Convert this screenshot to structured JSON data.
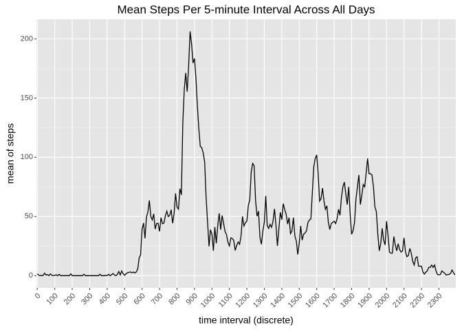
{
  "chart_data": {
    "type": "line",
    "title": "Mean Steps Per 5-minute Interval Across All Days",
    "x_label": "time interval (discrete)",
    "y_label": "mean of steps",
    "color": "#000000",
    "grid": true,
    "ylim": [
      -10.3,
      216.5
    ],
    "yticks": [
      0,
      50,
      100,
      150,
      200
    ],
    "categories": [
      "0",
      null,
      null,
      null,
      null,
      null,
      null,
      null,
      null,
      null,
      null,
      null,
      "100",
      null,
      null,
      null,
      null,
      null,
      null,
      null,
      null,
      null,
      null,
      null,
      "200",
      null,
      null,
      null,
      null,
      null,
      null,
      null,
      null,
      null,
      null,
      null,
      "300",
      null,
      null,
      null,
      null,
      null,
      null,
      null,
      null,
      null,
      null,
      null,
      "400",
      null,
      null,
      null,
      null,
      null,
      null,
      null,
      null,
      null,
      null,
      null,
      "500",
      null,
      null,
      null,
      null,
      null,
      null,
      null,
      null,
      null,
      null,
      null,
      "600",
      null,
      null,
      null,
      null,
      null,
      null,
      null,
      null,
      null,
      null,
      null,
      "700",
      null,
      null,
      null,
      null,
      null,
      null,
      null,
      null,
      null,
      null,
      null,
      "800",
      null,
      null,
      null,
      null,
      null,
      null,
      null,
      null,
      null,
      null,
      null,
      "900",
      null,
      null,
      null,
      null,
      null,
      null,
      null,
      null,
      null,
      null,
      null,
      "1000",
      null,
      null,
      null,
      null,
      null,
      null,
      null,
      null,
      null,
      null,
      null,
      "1100",
      null,
      null,
      null,
      null,
      null,
      null,
      null,
      null,
      null,
      null,
      null,
      "1200",
      null,
      null,
      null,
      null,
      null,
      null,
      null,
      null,
      null,
      null,
      null,
      "1300",
      null,
      null,
      null,
      null,
      null,
      null,
      null,
      null,
      null,
      null,
      null,
      "1400",
      null,
      null,
      null,
      null,
      null,
      null,
      null,
      null,
      null,
      null,
      null,
      "1500",
      null,
      null,
      null,
      null,
      null,
      null,
      null,
      null,
      null,
      null,
      null,
      "1600",
      null,
      null,
      null,
      null,
      null,
      null,
      null,
      null,
      null,
      null,
      null,
      "1700",
      null,
      null,
      null,
      null,
      null,
      null,
      null,
      null,
      null,
      null,
      null,
      "1800",
      null,
      null,
      null,
      null,
      null,
      null,
      null,
      null,
      null,
      null,
      null,
      "1900",
      null,
      null,
      null,
      null,
      null,
      null,
      null,
      null,
      null,
      null,
      null,
      "2000",
      null,
      null,
      null,
      null,
      null,
      null,
      null,
      null,
      null,
      null,
      null,
      "2100",
      null,
      null,
      null,
      null,
      null,
      null,
      null,
      null,
      null,
      null,
      null,
      "2200",
      null,
      null,
      null,
      null,
      null,
      null,
      null,
      null,
      null,
      null,
      null,
      "2300",
      null,
      null,
      null,
      null,
      null,
      null,
      null,
      null,
      null,
      null,
      null
    ],
    "values": [
      1.7,
      0.3,
      0.1,
      0.2,
      0.1,
      2.1,
      0.5,
      0.9,
      0,
      1.5,
      0.3,
      0.1,
      0.3,
      0.7,
      0,
      1.1,
      0,
      0.1,
      0,
      0,
      0.1,
      0,
      0,
      1.5,
      0,
      0,
      0,
      0,
      0,
      0,
      0,
      0,
      1.2,
      0,
      0,
      0,
      0,
      0,
      0,
      0,
      0,
      0,
      0,
      1.2,
      0,
      0,
      0,
      0.3,
      0,
      1.2,
      0,
      0.7,
      1.8,
      0.6,
      0,
      1,
      3.5,
      0.6,
      4,
      1.7,
      0.3,
      1.6,
      2.5,
      2.8,
      3.2,
      2.4,
      3.1,
      2.3,
      3.1,
      5.5,
      15,
      17.7,
      39.3,
      44.5,
      31.5,
      49.3,
      53.8,
      63.5,
      49.9,
      47.1,
      52.2,
      39.3,
      44,
      44.2,
      37.4,
      49,
      43.8,
      44.4,
      50.5,
      54.5,
      49.9,
      51,
      55.7,
      44.3,
      52.3,
      69.5,
      57.8,
      56.2,
      73.4,
      68.2,
      129.4,
      157.5,
      171.2,
      155.4,
      177.3,
      206.2,
      195.9,
      179.6,
      183.4,
      167,
      143.5,
      124,
      109.1,
      108.1,
      103.7,
      96,
      66.2,
      45.2,
      24.8,
      38.8,
      35,
      21.1,
      41,
      27.3,
      42.4,
      52.7,
      38.9,
      50.8,
      44.3,
      37.4,
      34.7,
      28.3,
      25.1,
      31.9,
      31.4,
      29.7,
      21.3,
      25.5,
      28.4,
      26.5,
      33.4,
      50,
      42,
      44.7,
      46,
      59.2,
      63.9,
      87.5,
      94.8,
      92.8,
      63.4,
      50.2,
      54.5,
      32.4,
      26.5,
      37.7,
      45.1,
      67.3,
      42.3,
      39.9,
      43.3,
      40.8,
      46.2,
      56.4,
      42.8,
      25.1,
      39.5,
      53.5,
      47.3,
      60.8,
      55.8,
      52,
      43.6,
      49,
      35.5,
      37.8,
      49,
      33.5,
      29.2,
      17.9,
      27.5,
      42,
      30,
      35,
      36,
      38,
      45,
      47,
      48,
      70,
      92,
      99,
      102,
      86,
      63,
      65,
      74,
      63,
      56,
      59,
      45,
      39,
      44,
      45,
      46,
      44,
      48,
      56,
      51,
      66,
      75,
      79,
      69,
      60,
      75,
      52,
      35,
      38,
      45,
      65,
      75,
      85,
      60,
      68,
      77,
      75,
      87,
      99,
      86,
      86,
      85,
      75,
      58,
      54,
      35,
      21,
      27,
      40,
      30,
      26,
      46,
      34,
      20,
      19,
      19,
      33,
      26,
      21,
      27,
      22,
      20,
      21,
      32,
      20,
      16,
      17,
      23,
      19,
      12,
      9,
      15,
      16,
      8,
      8,
      8,
      3,
      1.3,
      3,
      4,
      7,
      7,
      9,
      7,
      9,
      4,
      1,
      0.7,
      1,
      4,
      3,
      2,
      0.4,
      1,
      1,
      2,
      4.7,
      2.6,
      0.6
    ]
  }
}
